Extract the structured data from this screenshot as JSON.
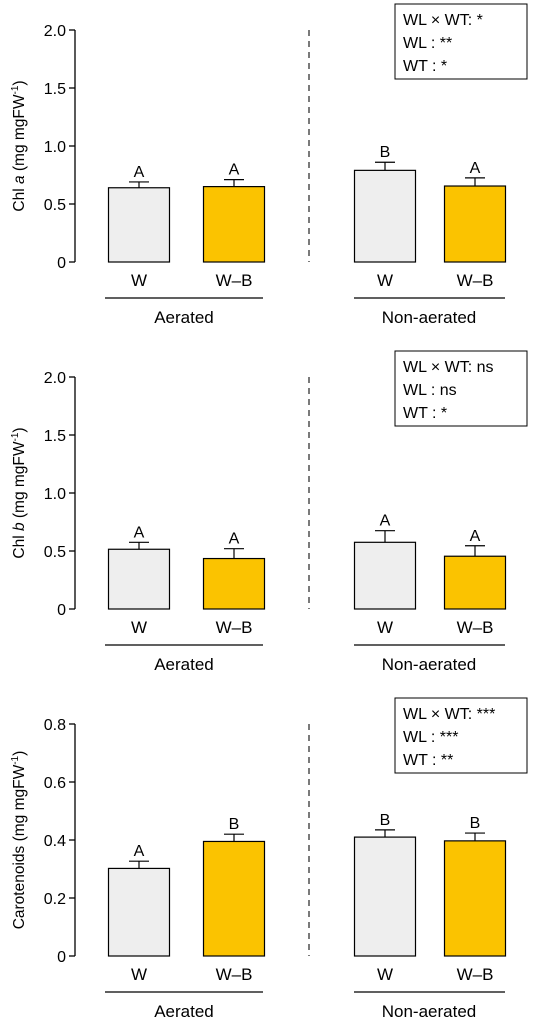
{
  "colors": {
    "W": "#eeeeee",
    "W-B": "#fbc300",
    "axis": "#000000"
  },
  "chart_data": [
    {
      "type": "bar",
      "panel": "chl-a",
      "ylabel_main": "Chl ",
      "ylabel_italic": "a",
      "ylabel_unit": " (mg mgFW",
      "ylabel_sup": "-1",
      "ylabel_close": ")",
      "ylim": [
        0,
        2.0
      ],
      "yticks": [
        0,
        0.5,
        1.0,
        1.5,
        2.0
      ],
      "ytick_labels": [
        "0",
        "0.5",
        "1.0",
        "1.5",
        "2.0"
      ],
      "categories": [
        "W",
        "W–B",
        "W",
        "W–B"
      ],
      "groups": [
        "Aerated",
        "Non-aerated"
      ],
      "values": [
        0.64,
        0.65,
        0.79,
        0.655
      ],
      "errors": [
        0.05,
        0.06,
        0.07,
        0.07
      ],
      "letters": [
        "A",
        "A",
        "B",
        "A"
      ],
      "stats": [
        "WL × WT: *",
        "WL : **",
        "WT : *"
      ]
    },
    {
      "type": "bar",
      "panel": "chl-b",
      "ylabel_main": "Chl ",
      "ylabel_italic": "b",
      "ylabel_unit": " (mg mgFW",
      "ylabel_sup": "-1",
      "ylabel_close": ")",
      "ylim": [
        0,
        2.0
      ],
      "yticks": [
        0,
        0.5,
        1.0,
        1.5,
        2.0
      ],
      "ytick_labels": [
        "0",
        "0.5",
        "1.0",
        "1.5",
        "2.0"
      ],
      "categories": [
        "W",
        "W–B",
        "W",
        "W–B"
      ],
      "groups": [
        "Aerated",
        "Non-aerated"
      ],
      "values": [
        0.515,
        0.435,
        0.575,
        0.455
      ],
      "errors": [
        0.06,
        0.085,
        0.1,
        0.09
      ],
      "letters": [
        "A",
        "A",
        "A",
        "A"
      ],
      "stats": [
        "WL × WT: ns",
        "WL : ns",
        "WT : *"
      ]
    },
    {
      "type": "bar",
      "panel": "carotenoids",
      "ylabel_main": "Carotenoids",
      "ylabel_italic": "",
      "ylabel_unit": " (mg mgFW",
      "ylabel_sup": "-1",
      "ylabel_close": ")",
      "ylim": [
        0,
        0.8
      ],
      "yticks": [
        0,
        0.2,
        0.4,
        0.6,
        0.8
      ],
      "ytick_labels": [
        "0",
        "0.2",
        "0.4",
        "0.6",
        "0.8"
      ],
      "categories": [
        "W",
        "W–B",
        "W",
        "W–B"
      ],
      "groups": [
        "Aerated",
        "Non-aerated"
      ],
      "values": [
        0.302,
        0.395,
        0.41,
        0.397
      ],
      "errors": [
        0.025,
        0.025,
        0.025,
        0.027
      ],
      "letters": [
        "A",
        "B",
        "B",
        "B"
      ],
      "stats": [
        "WL × WT: ***",
        "WL : ***",
        "WT : **"
      ]
    }
  ]
}
